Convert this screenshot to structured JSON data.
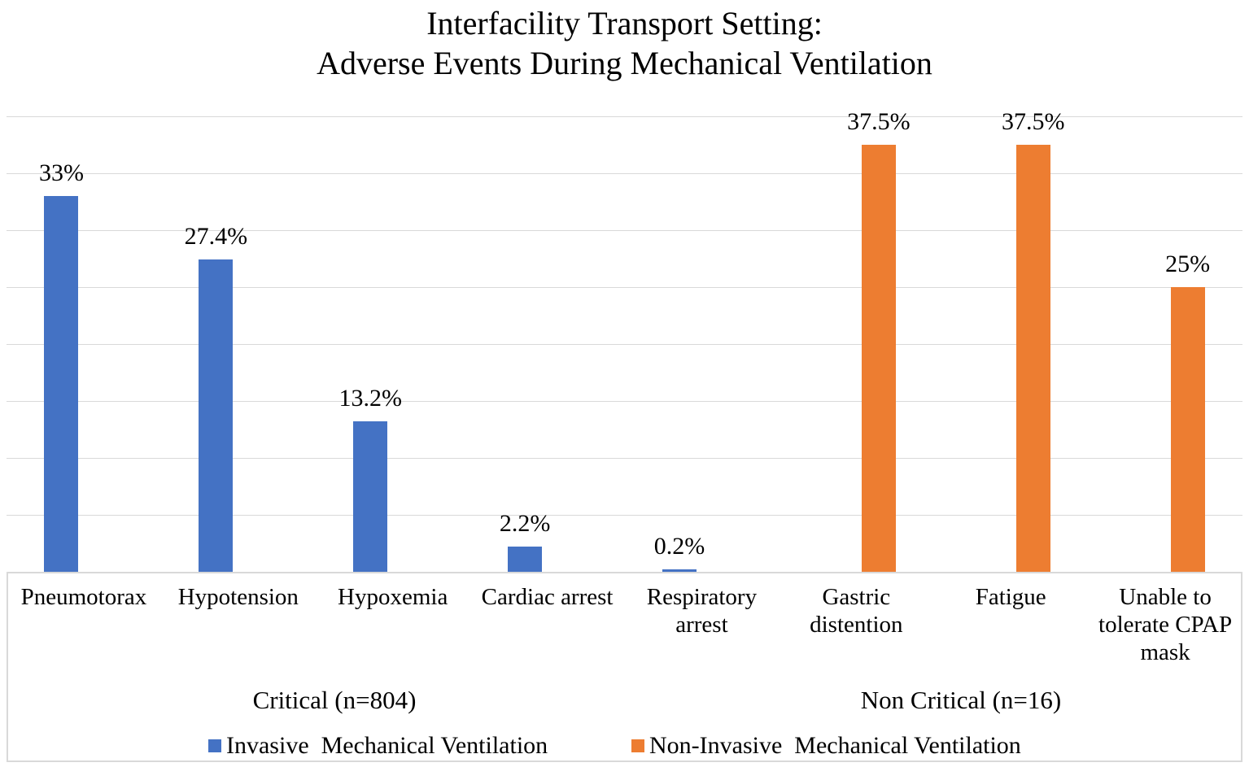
{
  "title": {
    "line1": "Interfacility Transport Setting:",
    "line2": "Adverse Events During Mechanical Ventilation"
  },
  "chart_data": {
    "type": "bar",
    "title": "Interfacility Transport Setting: Adverse Events During Mechanical Ventilation",
    "categories": [
      "Pneumotorax",
      "Hypotension",
      "Hypoxemia",
      "Cardiac arrest",
      "Respiratory arrest",
      "Gastric distention",
      "Fatigue",
      "Unable to tolerate CPAP mask"
    ],
    "series": [
      {
        "name": "Invasive  Mechanical Ventilation",
        "color": "#4472c4",
        "values": [
          33,
          27.4,
          13.2,
          2.2,
          0.2,
          null,
          null,
          null
        ],
        "labels": [
          "33%",
          "27.4%",
          "13.2%",
          "2.2%",
          "0.2%",
          null,
          null,
          null
        ]
      },
      {
        "name": "Non-Invasive  Mechanical Ventilation",
        "color": "#ed7d31",
        "values": [
          null,
          null,
          null,
          null,
          null,
          37.5,
          37.5,
          25
        ],
        "labels": [
          null,
          null,
          null,
          null,
          null,
          "37.5%",
          "37.5%",
          "25%"
        ]
      }
    ],
    "groups": [
      {
        "label": "Critical (n=804)",
        "categories_span": [
          0,
          4
        ]
      },
      {
        "label": "Non Critical (n=16)",
        "categories_span": [
          5,
          7
        ]
      }
    ],
    "ylim": [
      0,
      40
    ],
    "gridline_step": 5,
    "grid": true,
    "y_axis_tick_labels_visible": false,
    "legend_position": "bottom",
    "colors": {
      "invasive": "#4472c4",
      "non_invasive": "#ed7d31",
      "gridline": "#d9d9d9",
      "text": "#000000",
      "background": "#ffffff"
    }
  }
}
